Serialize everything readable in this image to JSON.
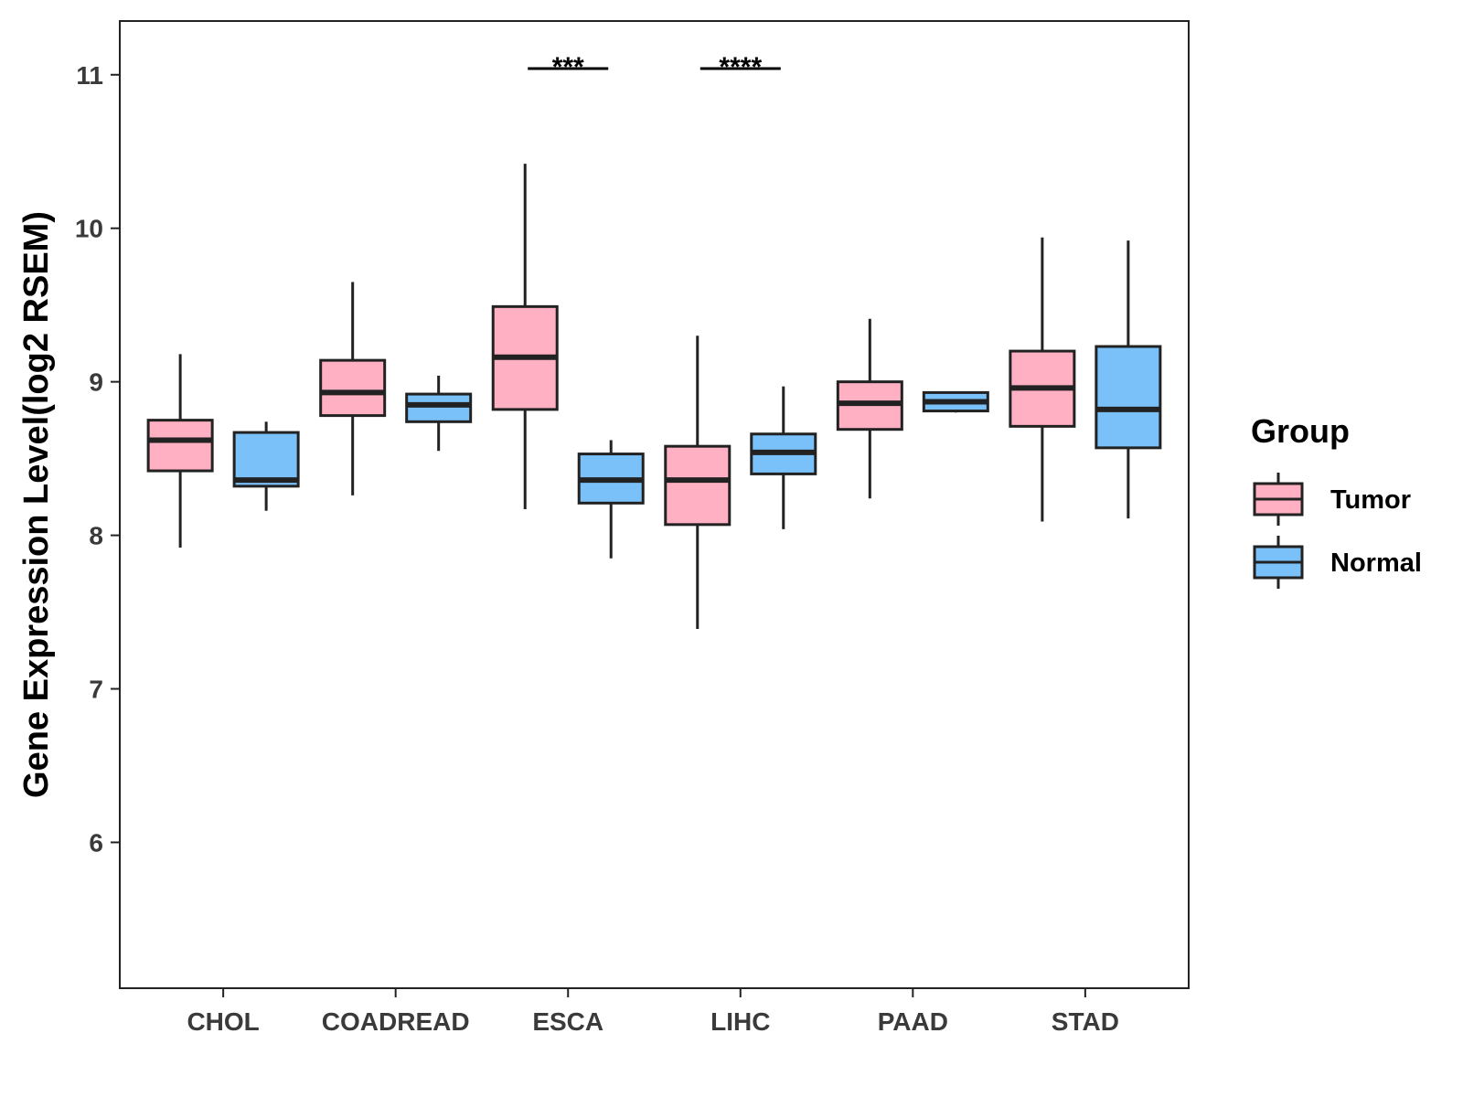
{
  "chart_data": {
    "type": "boxplot",
    "title": "",
    "xlabel": "",
    "ylabel": "Gene Expression Level(log2 RSEM)",
    "ylim": [
      5.05,
      11.35
    ],
    "yticks": [
      6,
      7,
      8,
      9,
      10,
      11
    ],
    "categories": [
      "CHOL",
      "COADREAD",
      "ESCA",
      "LIHC",
      "PAAD",
      "STAD"
    ],
    "legend": {
      "title": "Group",
      "position": "right"
    },
    "series": [
      {
        "name": "Tumor",
        "color": "#FFB0C2",
        "boxes": [
          {
            "category": "CHOL",
            "min": 7.92,
            "q1": 8.42,
            "median": 8.62,
            "q3": 8.75,
            "max": 9.18
          },
          {
            "category": "COADREAD",
            "min": 8.26,
            "q1": 8.78,
            "median": 8.93,
            "q3": 9.14,
            "max": 9.65
          },
          {
            "category": "ESCA",
            "min": 8.17,
            "q1": 8.82,
            "median": 9.16,
            "q3": 9.49,
            "max": 10.42
          },
          {
            "category": "LIHC",
            "min": 7.39,
            "q1": 8.07,
            "median": 8.36,
            "q3": 8.58,
            "max": 9.3
          },
          {
            "category": "PAAD",
            "min": 8.24,
            "q1": 8.69,
            "median": 8.86,
            "q3": 9.0,
            "max": 9.41
          },
          {
            "category": "STAD",
            "min": 8.09,
            "q1": 8.71,
            "median": 8.96,
            "q3": 9.2,
            "max": 9.94
          }
        ]
      },
      {
        "name": "Normal",
        "color": "#79C1F8",
        "boxes": [
          {
            "category": "CHOL",
            "min": 8.16,
            "q1": 8.32,
            "median": 8.36,
            "q3": 8.67,
            "max": 8.74
          },
          {
            "category": "COADREAD",
            "min": 8.55,
            "q1": 8.74,
            "median": 8.85,
            "q3": 8.92,
            "max": 9.04
          },
          {
            "category": "ESCA",
            "min": 7.85,
            "q1": 8.21,
            "median": 8.36,
            "q3": 8.53,
            "max": 8.62
          },
          {
            "category": "LIHC",
            "min": 8.04,
            "q1": 8.4,
            "median": 8.54,
            "q3": 8.66,
            "max": 8.97
          },
          {
            "category": "PAAD",
            "min": 8.8,
            "q1": 8.81,
            "median": 8.87,
            "q3": 8.93,
            "max": 8.93
          },
          {
            "category": "STAD",
            "min": 8.11,
            "q1": 8.57,
            "median": 8.82,
            "q3": 9.23,
            "max": 9.92
          }
        ]
      }
    ],
    "significance": [
      {
        "category": "ESCA",
        "label": "***",
        "y": 11.04
      },
      {
        "category": "LIHC",
        "label": "****",
        "y": 11.04
      }
    ]
  }
}
